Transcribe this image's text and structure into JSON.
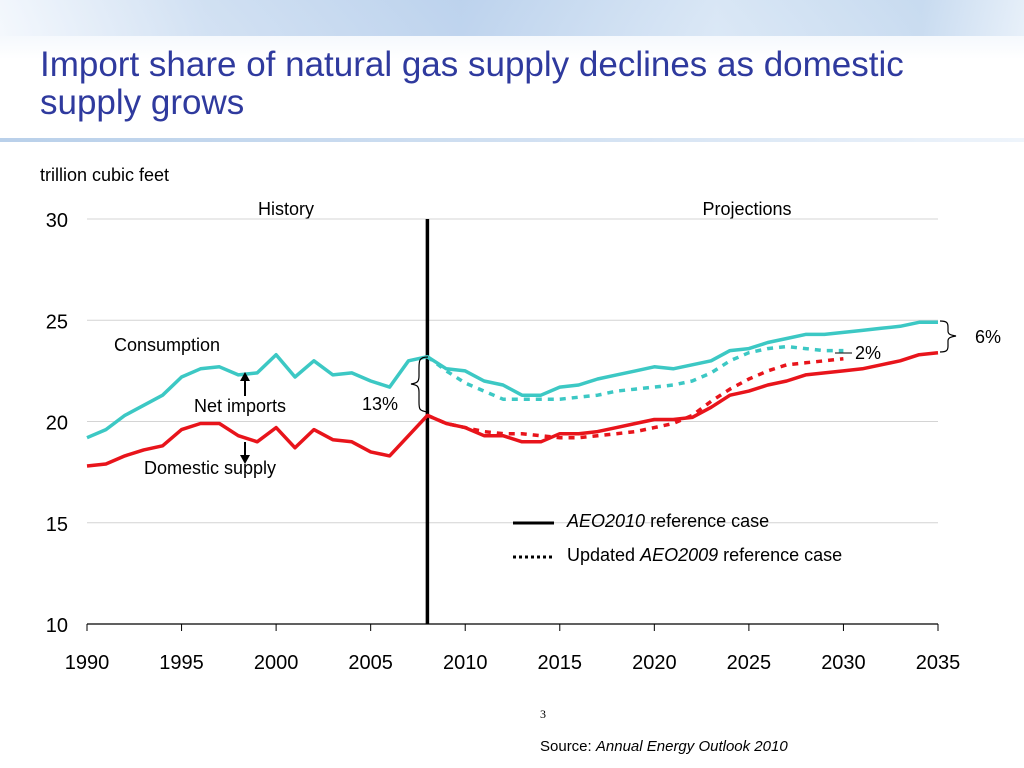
{
  "slide": {
    "title": "Import share of natural gas supply declines as domestic supply grows",
    "page_number": "3",
    "source_label": "Source: ",
    "source_title": "Annual Energy Outlook 2010"
  },
  "chart_data": {
    "type": "line",
    "ylabel": "trillion cubic feet",
    "xlim": [
      1990,
      2035
    ],
    "ylim": [
      10,
      30
    ],
    "x_ticks": [
      1990,
      1995,
      2000,
      2005,
      2010,
      2015,
      2020,
      2025,
      2030,
      2035
    ],
    "y_ticks": [
      10,
      15,
      20,
      25,
      30
    ],
    "grid": "horizontal",
    "divider_year": 2008,
    "region_labels": {
      "history": "History",
      "projections": "Projections"
    },
    "annotations": {
      "consumption": "Consumption",
      "net_imports": "Net imports",
      "domestic_supply": "Domestic supply",
      "import_share_2008": "13%",
      "import_share_2035": "6%",
      "import_share_aeo2009": "2%"
    },
    "legend": [
      {
        "style": "solid",
        "italic": "AEO2010",
        "text": " reference case"
      },
      {
        "style": "dotted",
        "prefix": "Updated ",
        "italic": "AEO2009",
        "text": " reference case"
      }
    ],
    "colors": {
      "consumption": "#3cc8c4",
      "domestic": "#e8141b",
      "divider": "#000000",
      "grid": "#d4d4d4"
    },
    "series": [
      {
        "key": "consumption",
        "case": "AEO2010",
        "line": "solid",
        "x": [
          1990,
          1991,
          1992,
          1993,
          1994,
          1995,
          1996,
          1997,
          1998,
          1999,
          2000,
          2001,
          2002,
          2003,
          2004,
          2005,
          2006,
          2007,
          2008,
          2009,
          2010,
          2011,
          2012,
          2013,
          2014,
          2015,
          2016,
          2017,
          2018,
          2019,
          2020,
          2021,
          2022,
          2023,
          2024,
          2025,
          2026,
          2027,
          2028,
          2029,
          2030,
          2031,
          2032,
          2033,
          2034,
          2035
        ],
        "y": [
          19.2,
          19.6,
          20.3,
          20.8,
          21.3,
          22.2,
          22.6,
          22.7,
          22.3,
          22.4,
          23.3,
          22.2,
          23.0,
          22.3,
          22.4,
          22.0,
          21.7,
          23.0,
          23.2,
          22.6,
          22.5,
          22.0,
          21.8,
          21.3,
          21.3,
          21.7,
          21.8,
          22.1,
          22.3,
          22.5,
          22.7,
          22.6,
          22.8,
          23.0,
          23.5,
          23.6,
          23.9,
          24.1,
          24.3,
          24.3,
          24.4,
          24.5,
          24.6,
          24.7,
          24.9,
          24.9
        ]
      },
      {
        "key": "domestic",
        "case": "AEO2010",
        "line": "solid",
        "x": [
          1990,
          1991,
          1992,
          1993,
          1994,
          1995,
          1996,
          1997,
          1998,
          1999,
          2000,
          2001,
          2002,
          2003,
          2004,
          2005,
          2006,
          2007,
          2008,
          2009,
          2010,
          2011,
          2012,
          2013,
          2014,
          2015,
          2016,
          2017,
          2018,
          2019,
          2020,
          2021,
          2022,
          2023,
          2024,
          2025,
          2026,
          2027,
          2028,
          2029,
          2030,
          2031,
          2032,
          2033,
          2034,
          2035
        ],
        "y": [
          17.8,
          17.9,
          18.3,
          18.6,
          18.8,
          19.6,
          19.9,
          19.9,
          19.3,
          19.0,
          19.7,
          18.7,
          19.6,
          19.1,
          19.0,
          18.5,
          18.3,
          19.3,
          20.3,
          19.9,
          19.7,
          19.3,
          19.3,
          19.0,
          19.0,
          19.4,
          19.4,
          19.5,
          19.7,
          19.9,
          20.1,
          20.1,
          20.2,
          20.7,
          21.3,
          21.5,
          21.8,
          22.0,
          22.3,
          22.4,
          22.5,
          22.6,
          22.8,
          23.0,
          23.3,
          23.4
        ]
      },
      {
        "key": "consumption",
        "case": "Updated AEO2009",
        "line": "dotted",
        "x": [
          2008,
          2009,
          2010,
          2011,
          2012,
          2013,
          2014,
          2015,
          2016,
          2017,
          2018,
          2019,
          2020,
          2021,
          2022,
          2023,
          2024,
          2025,
          2026,
          2027,
          2028,
          2029,
          2030
        ],
        "y": [
          23.2,
          22.5,
          21.9,
          21.5,
          21.1,
          21.1,
          21.1,
          21.1,
          21.2,
          21.3,
          21.5,
          21.6,
          21.7,
          21.8,
          22.0,
          22.4,
          23.0,
          23.4,
          23.6,
          23.7,
          23.6,
          23.5,
          23.5
        ]
      },
      {
        "key": "domestic",
        "case": "Updated AEO2009",
        "line": "dotted",
        "x": [
          2008,
          2009,
          2010,
          2011,
          2012,
          2013,
          2014,
          2015,
          2016,
          2017,
          2018,
          2019,
          2020,
          2021,
          2022,
          2023,
          2024,
          2025,
          2026,
          2027,
          2028,
          2029,
          2030
        ],
        "y": [
          20.3,
          19.9,
          19.7,
          19.5,
          19.4,
          19.4,
          19.3,
          19.2,
          19.2,
          19.3,
          19.4,
          19.5,
          19.7,
          19.9,
          20.3,
          21.0,
          21.6,
          22.1,
          22.5,
          22.8,
          22.9,
          23.0,
          23.1
        ]
      }
    ]
  }
}
